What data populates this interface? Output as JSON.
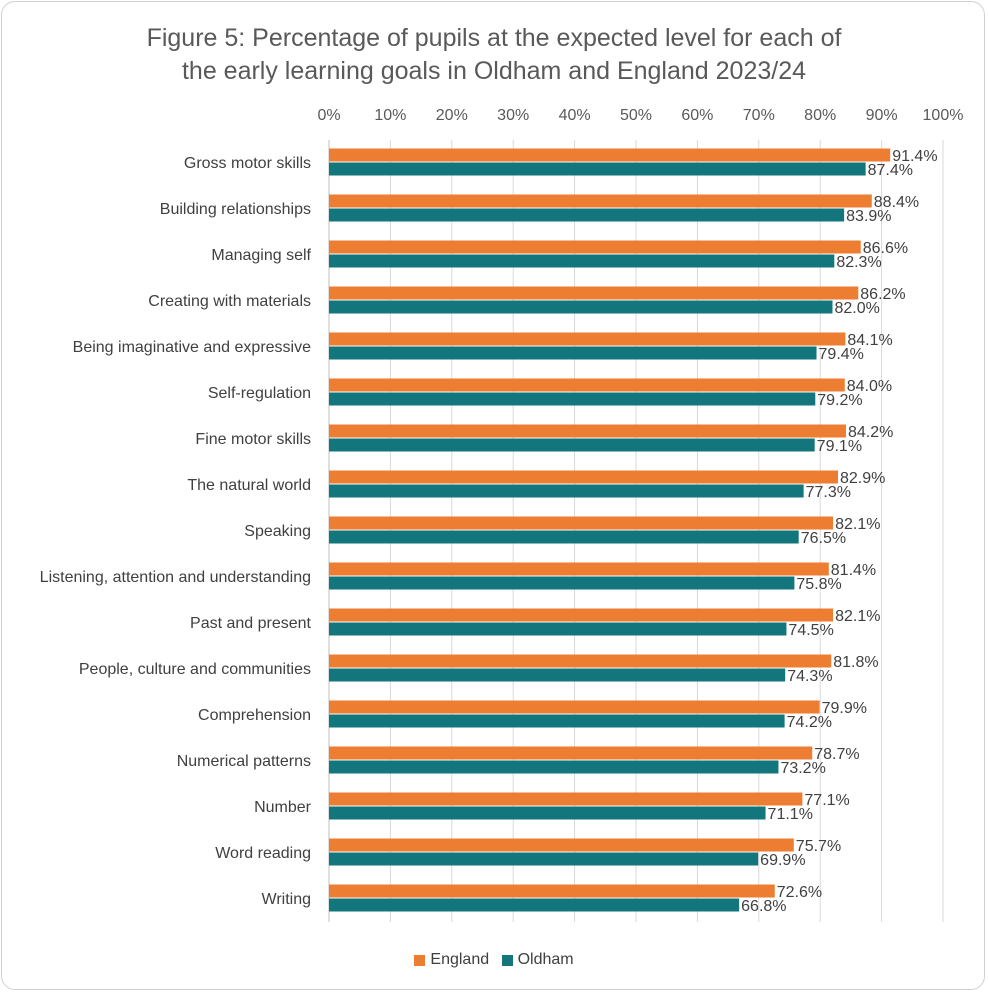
{
  "chart_data": {
    "type": "bar",
    "orientation": "horizontal",
    "title_line1": "Figure 5: Percentage of pupils at the expected level for each of",
    "title_line2": "the early learning goals in Oldham and England 2023/24",
    "categories": [
      "Gross motor skills",
      "Building relationships",
      "Managing self",
      "Creating with materials",
      "Being imaginative and expressive",
      "Self-regulation",
      "Fine motor skills",
      "The natural world",
      "Speaking",
      "Listening, attention and understanding",
      "Past and present",
      "People, culture and communities",
      "Comprehension",
      "Numerical patterns",
      "Number",
      "Word reading",
      "Writing"
    ],
    "series": [
      {
        "name": "England",
        "color": "#ED7D31",
        "values": [
          91.4,
          88.4,
          86.6,
          86.2,
          84.1,
          84.0,
          84.2,
          82.9,
          82.1,
          81.4,
          82.1,
          81.8,
          79.9,
          78.7,
          77.1,
          75.7,
          72.6
        ],
        "labels": [
          "91.4%",
          "88.4%",
          "86.6%",
          "86.2%",
          "84.1%",
          "84.0%",
          "84.2%",
          "82.9%",
          "82.1%",
          "81.4%",
          "82.1%",
          "81.8%",
          "79.9%",
          "78.7%",
          "77.1%",
          "75.7%",
          "72.6%"
        ]
      },
      {
        "name": "Oldham",
        "color": "#13767C",
        "values": [
          87.4,
          83.9,
          82.3,
          82.0,
          79.4,
          79.2,
          79.1,
          77.3,
          76.5,
          75.8,
          74.5,
          74.3,
          74.2,
          73.2,
          71.1,
          69.9,
          66.8
        ],
        "labels": [
          "87.4%",
          "83.9%",
          "82.3%",
          "82.0%",
          "79.4%",
          "79.2%",
          "79.1%",
          "77.3%",
          "76.5%",
          "75.8%",
          "74.5%",
          "74.3%",
          "74.2%",
          "73.2%",
          "71.1%",
          "69.9%",
          "66.8%"
        ]
      }
    ],
    "x_ticks": [
      "0%",
      "10%",
      "20%",
      "30%",
      "40%",
      "50%",
      "60%",
      "70%",
      "80%",
      "90%",
      "100%"
    ],
    "xlim": [
      0,
      100
    ],
    "axis_position": "top",
    "grid": true,
    "legend_position": "bottom"
  }
}
